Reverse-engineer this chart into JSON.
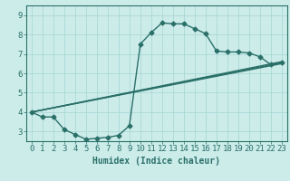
{
  "xlabel": "Humidex (Indice chaleur)",
  "bg_color": "#ccecea",
  "grid_color": "#aad8d6",
  "line_color": "#2a7068",
  "xlim": [
    -0.5,
    23.5
  ],
  "ylim": [
    2.5,
    9.5
  ],
  "xticks": [
    0,
    1,
    2,
    3,
    4,
    5,
    6,
    7,
    8,
    9,
    10,
    11,
    12,
    13,
    14,
    15,
    16,
    17,
    18,
    19,
    20,
    21,
    22,
    23
  ],
  "yticks": [
    3,
    4,
    5,
    6,
    7,
    8,
    9
  ],
  "curve_main_x": [
    0,
    1,
    2,
    3,
    4,
    5,
    6,
    7,
    8,
    9,
    10,
    11,
    12,
    13,
    14,
    15,
    16,
    17,
    18,
    19,
    20,
    21,
    22,
    23
  ],
  "curve_main_y": [
    4.0,
    3.75,
    3.75,
    3.1,
    2.85,
    2.6,
    2.65,
    2.7,
    2.8,
    3.3,
    7.5,
    8.1,
    8.6,
    8.55,
    8.55,
    8.3,
    8.05,
    7.15,
    7.1,
    7.1,
    7.05,
    6.85,
    6.45,
    6.55
  ],
  "line1_x": [
    0,
    23
  ],
  "line1_y": [
    4.0,
    6.5
  ],
  "line2_x": [
    0,
    23
  ],
  "line2_y": [
    4.0,
    6.6
  ],
  "line3_x": [
    0,
    23
  ],
  "line3_y": [
    4.0,
    6.55
  ],
  "marker_size": 2.5,
  "linewidth": 1.0,
  "xlabel_fontsize": 7,
  "tick_fontsize": 6.5
}
